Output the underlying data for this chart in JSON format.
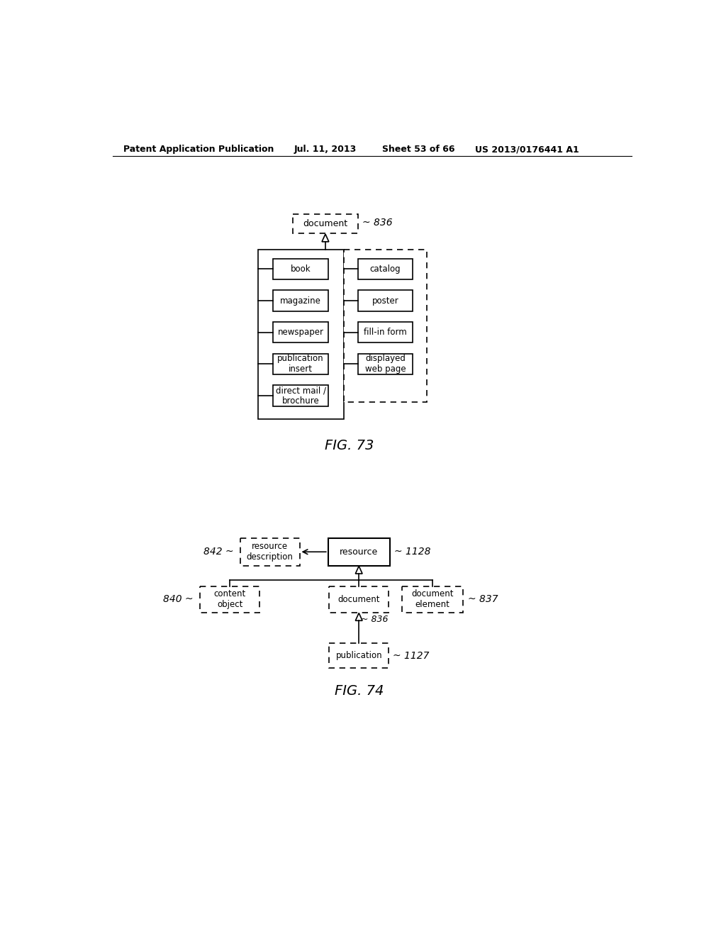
{
  "bg_color": "#ffffff",
  "header_text": "Patent Application Publication",
  "header_date": "Jul. 11, 2013",
  "header_sheet": "Sheet 53 of 66",
  "header_patent": "US 2013/0176441 A1",
  "fig73_label": "FIG. 73",
  "fig73_doc_label": "836",
  "fig73_left_items": [
    "book",
    "magazine",
    "newspaper",
    "publication\ninsert",
    "direct mail /\nbrochure"
  ],
  "fig73_right_items": [
    "catalog",
    "poster",
    "fill-in form",
    "displayed\nweb page"
  ],
  "fig74_label": "FIG. 74",
  "fig74_res_label": "1128",
  "fig74_resdesc_label": "842",
  "fig74_co_label": "840",
  "fig74_doc_label": "836",
  "fig74_de_label": "837",
  "fig74_pub_label": "1127"
}
